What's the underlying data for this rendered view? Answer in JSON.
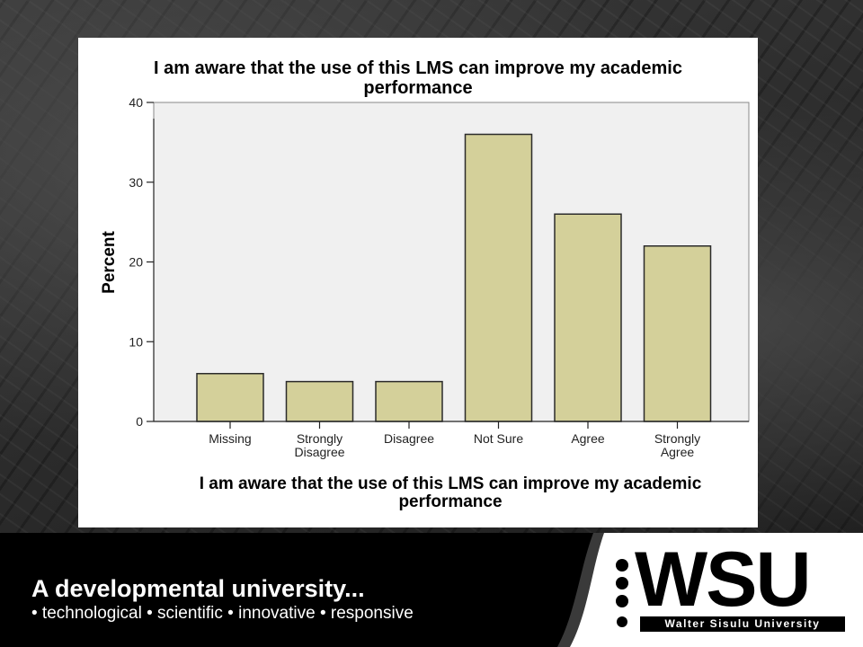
{
  "slide": {
    "tagline": "A developmental university...",
    "subtagline": "• technological • scientific • innovative • responsive",
    "logo_text": "WSU",
    "logo_sub": "Walter Sisulu University"
  },
  "colors": {
    "bar_fill": "#d4d09a",
    "bar_stroke": "#2b2b2b",
    "plot_bg": "#f0f0f0"
  },
  "chart_data": {
    "type": "bar",
    "title": "I am aware that the use of this LMS can improve my academic performance",
    "title_lines": [
      "I am aware that the use of this LMS can improve my academic",
      "performance"
    ],
    "xlabel": "I am aware that the use of this LMS can improve my academic performance",
    "xlabel_lines": [
      "I am aware that the use of this LMS can improve my academic",
      "performance"
    ],
    "ylabel": "Percent",
    "categories": [
      "Missing",
      "Strongly Disagree",
      "Disagree",
      "Not Sure",
      "Agree",
      "Strongly Agree"
    ],
    "category_lines": [
      [
        "Missing"
      ],
      [
        "Strongly",
        "Disagree"
      ],
      [
        "Disagree"
      ],
      [
        "Not Sure"
      ],
      [
        "Agree"
      ],
      [
        "Strongly",
        "Agree"
      ]
    ],
    "values": [
      6,
      5,
      5,
      36,
      26,
      22
    ],
    "ylim": [
      0,
      40
    ],
    "yticks": [
      0,
      10,
      20,
      30,
      40
    ],
    "grid": false
  }
}
